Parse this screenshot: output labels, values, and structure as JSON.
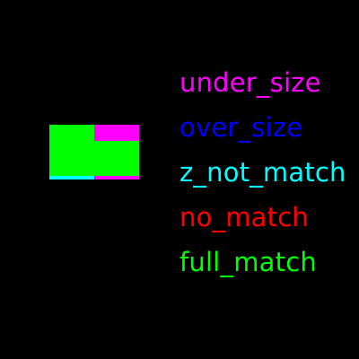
{
  "pattern": {
    "colors": {
      "green": "#00ff00",
      "magenta": "#ff00ff",
      "cyan": "#00ffff",
      "background": "#000000"
    }
  },
  "legend": [
    {
      "label": "under_size",
      "color": "#ff00ff"
    },
    {
      "label": "over_size",
      "color": "#0000ff"
    },
    {
      "label": "z_not_match",
      "color": "#00ffff"
    },
    {
      "label": "no_match",
      "color": "#ff0000"
    },
    {
      "label": "full_match",
      "color": "#00ff00"
    }
  ]
}
